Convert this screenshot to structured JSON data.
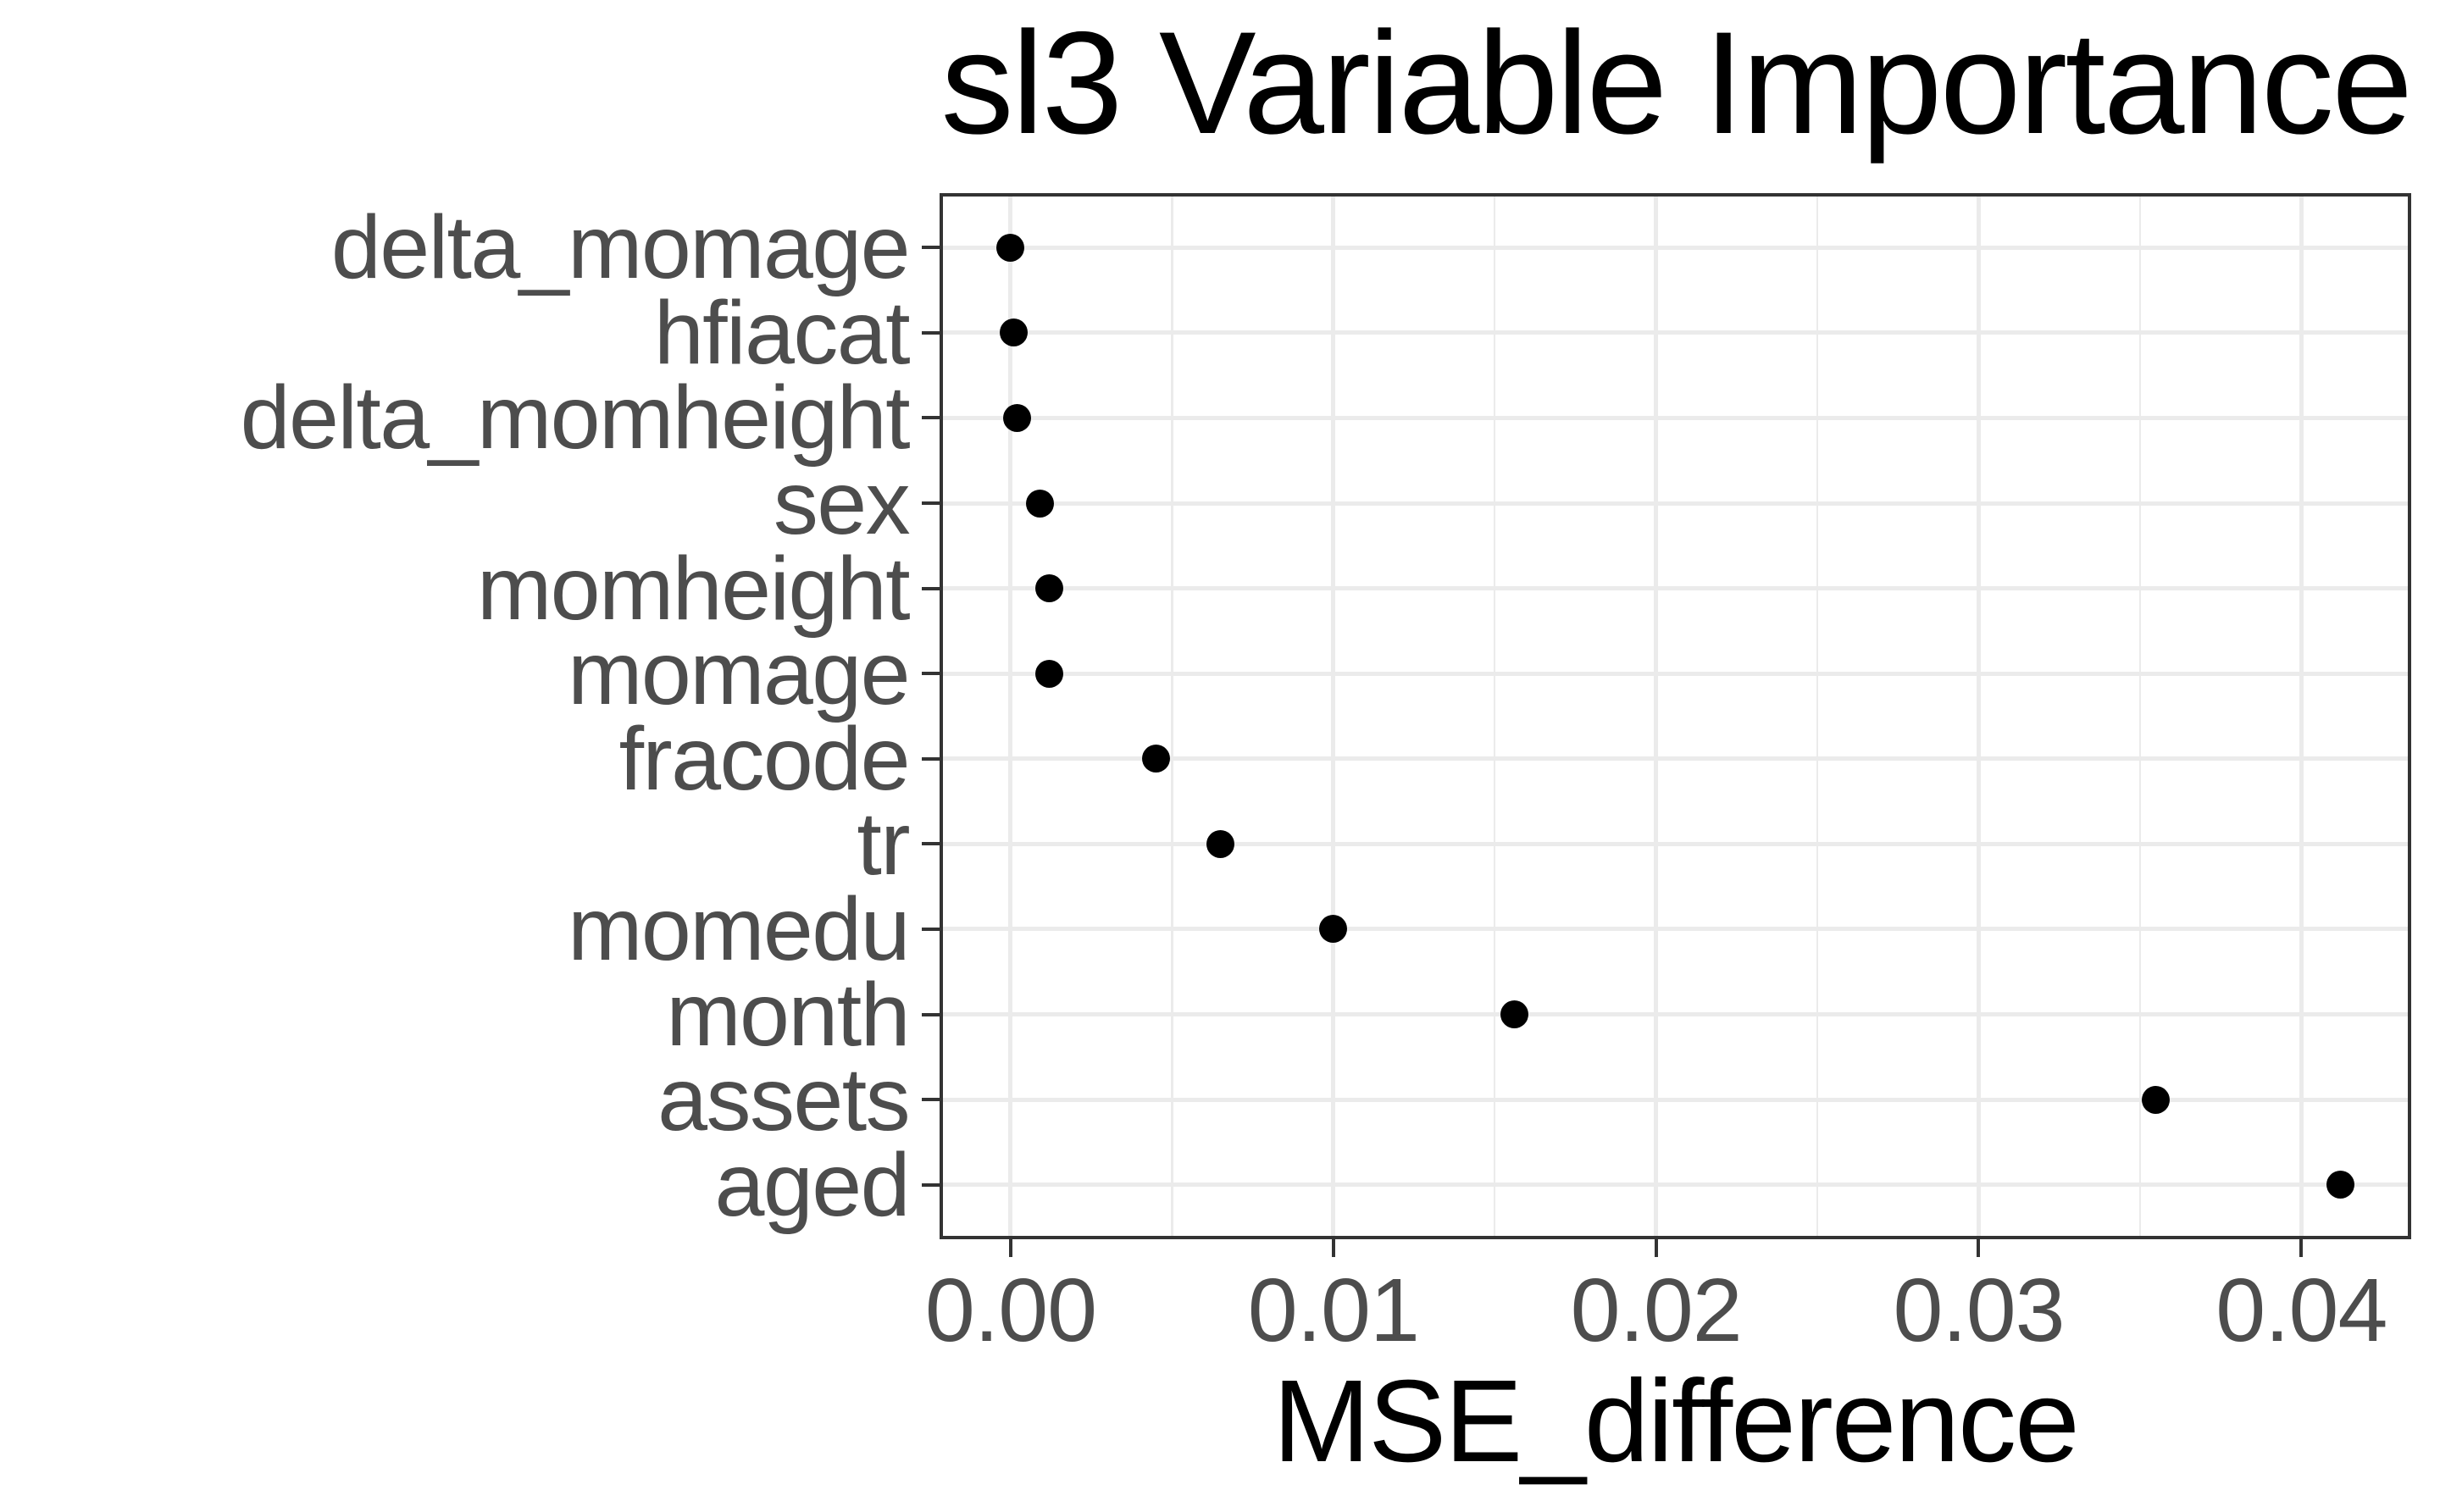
{
  "title": "sl3 Variable Importance",
  "chart_data": {
    "type": "scatter",
    "subtype": "horizontal-dot-plot",
    "title": "sl3 Variable Importance",
    "xlabel": "MSE_difference",
    "ylabel": "",
    "categories": [
      "delta_momage",
      "hfiacat",
      "delta_momheight",
      "sex",
      "momheight",
      "momage",
      "fracode",
      "tr",
      "momedu",
      "month",
      "assets",
      "aged"
    ],
    "values": [
      0.0,
      0.0001,
      0.0002,
      0.0009,
      0.0012,
      0.0012,
      0.0045,
      0.0065,
      0.01,
      0.0156,
      0.0355,
      0.0412
    ],
    "x_ticks": [
      0.0,
      0.01,
      0.02,
      0.03,
      0.04
    ],
    "x_tick_labels": [
      "0.00",
      "0.01",
      "0.02",
      "0.03",
      "0.04"
    ],
    "x_minor_ticks": [
      0.005,
      0.015,
      0.025,
      0.035
    ],
    "xlim": [
      -0.0021,
      0.0433
    ],
    "grid": true,
    "legend": "none",
    "colors": {
      "point": "#000000",
      "grid": "#ebebeb",
      "panel_border": "#333333",
      "tick": "#333333",
      "axis_text": "#4d4d4d",
      "title_text": "#000000",
      "background": "#ffffff"
    }
  }
}
